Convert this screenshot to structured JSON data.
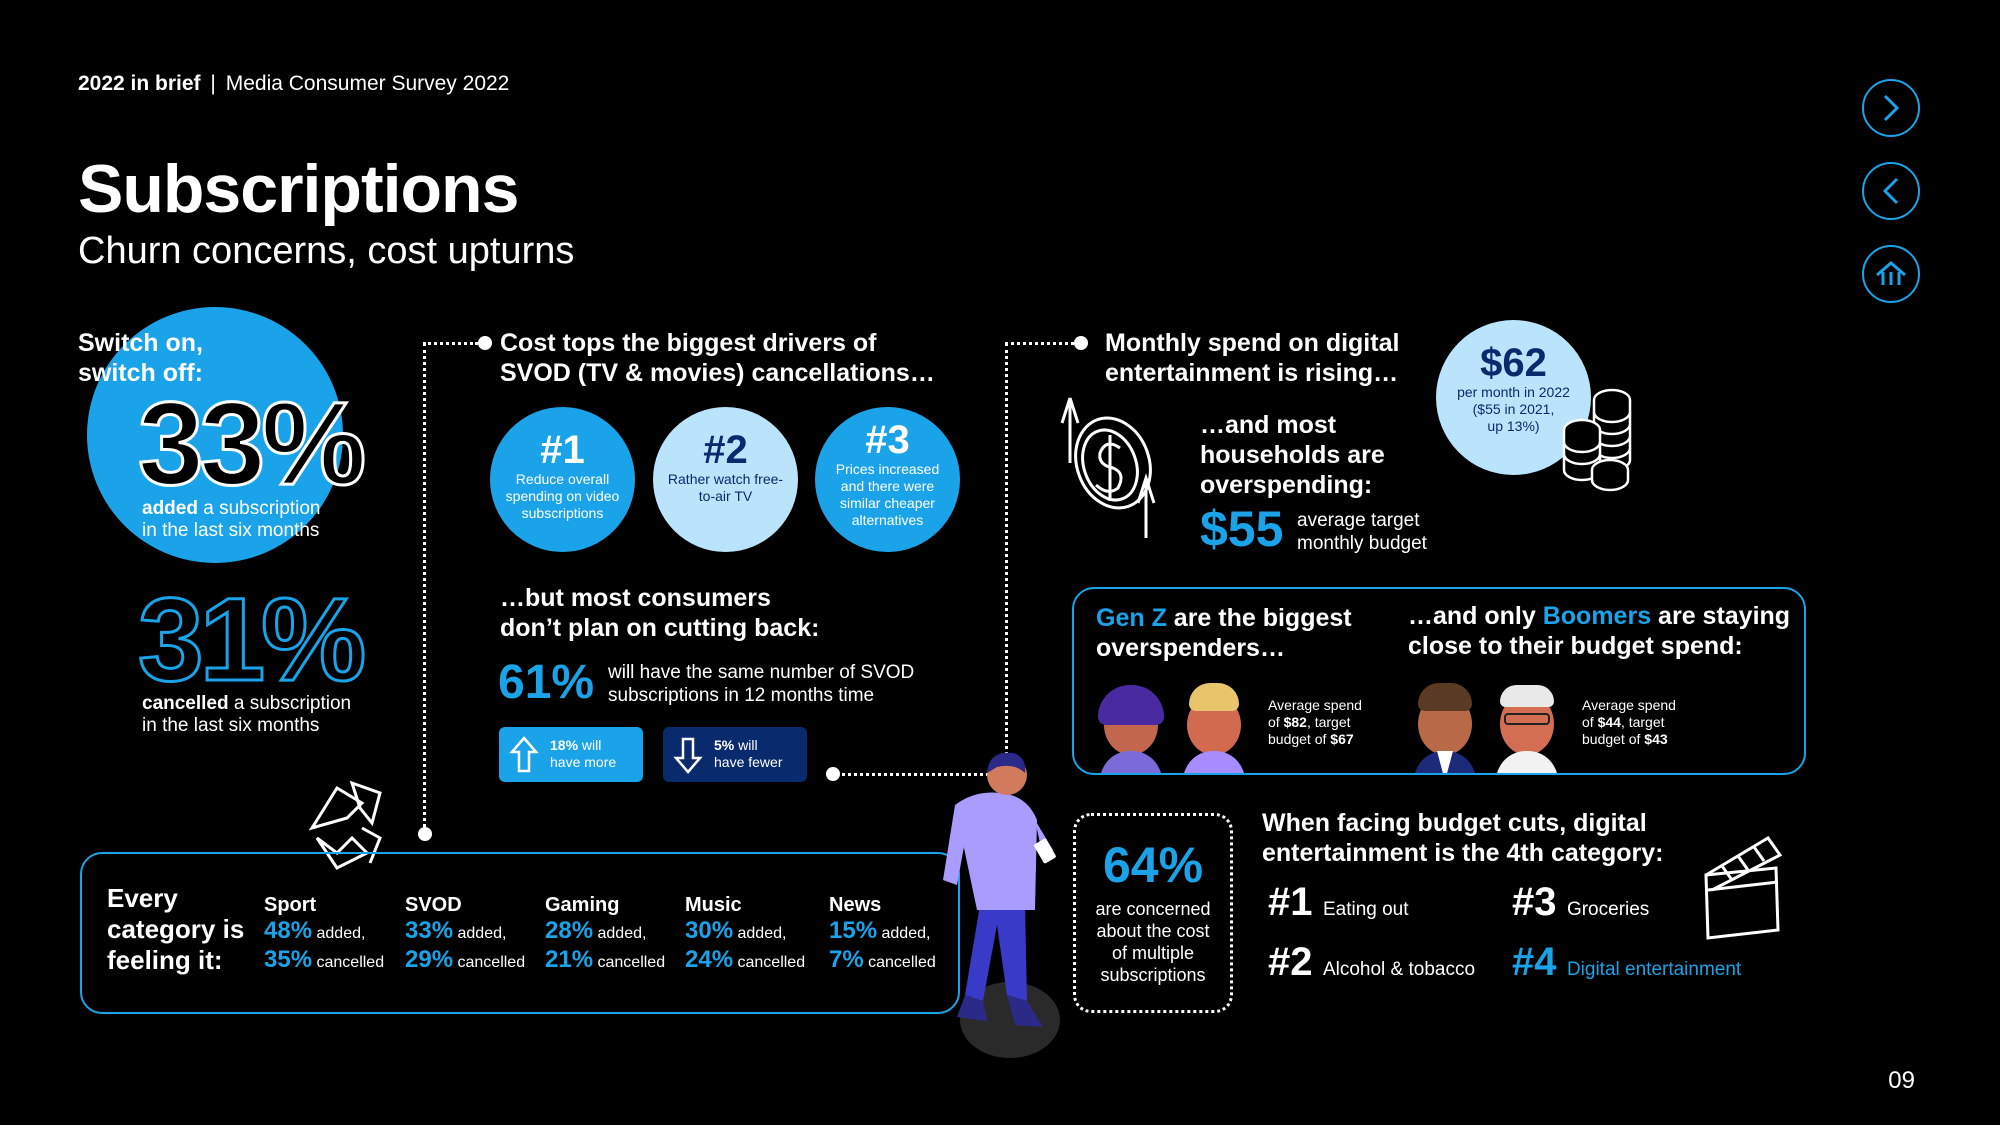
{
  "header": {
    "brief": "2022 in brief",
    "separator": "|",
    "survey": "Media Consumer Survey 2022"
  },
  "title": "Subscriptions",
  "subtitle": "Churn concerns, cost upturns",
  "page_number": "09",
  "switch": {
    "heading_line1": "Switch on,",
    "heading_line2": "switch off:",
    "added_pct": "33%",
    "added_bold": "added",
    "added_rest1": " a subscription",
    "added_rest2": "in the last six months",
    "cancelled_pct": "31%",
    "cancelled_bold": "cancelled",
    "cancelled_rest1": " a subscription",
    "cancelled_rest2": "in the last six months"
  },
  "drivers": {
    "heading_line1": "Cost tops the biggest drivers of",
    "heading_line2": "SVOD (TV & movies) cancellations…",
    "items": [
      {
        "rank": "#1",
        "text": "Reduce overall spending on video subscriptions"
      },
      {
        "rank": "#2",
        "text": "Rather watch free-to-air TV"
      },
      {
        "rank": "#3",
        "text": "Prices increased and there were similar cheaper alternatives"
      }
    ],
    "cutback_line1": "…but most consumers",
    "cutback_line2": "don’t plan on cutting back:",
    "same_pct": "61%",
    "same_text1": "will have the same number of SVOD",
    "same_text2": "subscriptions in 12 months time",
    "more_pct": "18%",
    "more_text1": " will",
    "more_text2": "have more",
    "fewer_pct": "5%",
    "fewer_text1": " will",
    "fewer_text2": "have fewer"
  },
  "spend": {
    "heading_line1": "Monthly spend on digital",
    "heading_line2": "entertainment is rising…",
    "amount": "$62",
    "amount_note1": "per month in 2022",
    "amount_note2": "($55 in 2021,",
    "amount_note3": "up 13%)",
    "over_line1": "…and most",
    "over_line2": "households are",
    "over_line3": "overspending:",
    "target": "$55",
    "target_text1": "average target",
    "target_text2": "monthly budget"
  },
  "genz": {
    "name": "Gen Z",
    "rest_line1": " are the biggest",
    "line2": "overspenders…",
    "avg1": "Average spend",
    "avg2a": "of ",
    "spend": "$82",
    "avg2b": ", target",
    "avg3a": "budget of ",
    "budget": "$67"
  },
  "boomers": {
    "pre": "…and only ",
    "name": "Boomers",
    "rest_line1": " are staying",
    "line2": "close to their budget spend:",
    "avg1": "Average spend",
    "avg2a": "of ",
    "spend": "$44",
    "avg2b": ", target",
    "avg3a": "budget of ",
    "budget": "$43"
  },
  "categories": {
    "heading_line1": "Every",
    "heading_line2": "category is",
    "heading_line3": "feeling it:",
    "added_label": " added,",
    "cancelled_label": " cancelled",
    "items": [
      {
        "name": "Sport",
        "added": "48%",
        "cancelled": "35%"
      },
      {
        "name": "SVOD",
        "added": "33%",
        "cancelled": "29%"
      },
      {
        "name": "Gaming",
        "added": "28%",
        "cancelled": "21%"
      },
      {
        "name": "Music",
        "added": "30%",
        "cancelled": "24%"
      },
      {
        "name": "News",
        "added": "15%",
        "cancelled": "7%"
      }
    ]
  },
  "concern": {
    "pct": "64%",
    "line1": "are concerned",
    "line2": "about the cost",
    "line3": "of multiple",
    "line4": "subscriptions"
  },
  "budget_cuts": {
    "heading_line1": "When facing budget cuts, digital",
    "heading_line2": "entertainment is the 4th category:",
    "items": [
      {
        "rank": "#1",
        "label": "Eating out"
      },
      {
        "rank": "#2",
        "label": "Alcohol & tobacco"
      },
      {
        "rank": "#3",
        "label": "Groceries"
      },
      {
        "rank": "#4",
        "label": "Digital entertainment"
      }
    ]
  },
  "colors": {
    "accent": "#1aa3e8",
    "light_accent": "#b9e4fb",
    "dark_navy": "#0a2a6e",
    "background": "#000000"
  },
  "icons": [
    "chevron-right-icon",
    "chevron-left-icon",
    "home-icon",
    "recycle-icon",
    "dollar-coin-icon",
    "coin-stack-icon",
    "clapperboard-icon",
    "arrow-up-icon",
    "arrow-down-icon"
  ]
}
